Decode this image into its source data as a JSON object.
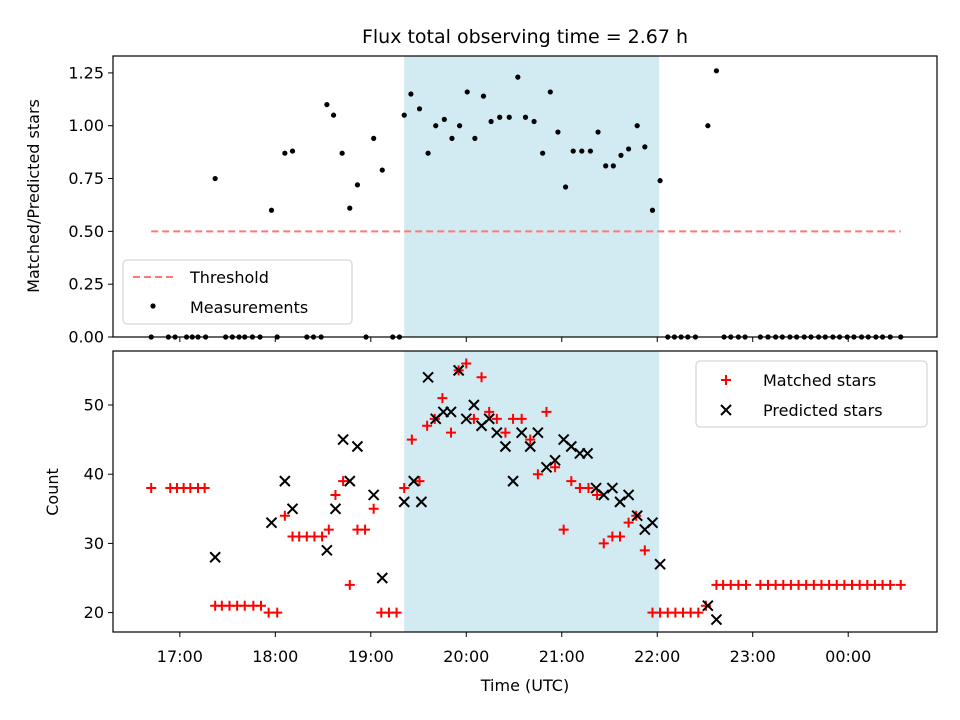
{
  "chart_data": {
    "type": "scatter",
    "title": "Flux total observing time = 2.67 h",
    "xlabel": "Time (UTC)",
    "x_ticks": [
      "17:00",
      "18:00",
      "19:00",
      "20:00",
      "21:00",
      "22:00",
      "23:00",
      "00:00"
    ],
    "shaded_window": {
      "start": 19.35,
      "end": 22.02,
      "color": "#add8e6"
    },
    "panels": [
      {
        "name": "ratio",
        "ylabel": "Matched/Predicted stars",
        "ylim": [
          0,
          1.33
        ],
        "y_ticks": [
          "0.00",
          "0.25",
          "0.50",
          "0.75",
          "1.00",
          "1.25"
        ],
        "legend_position": "lower-left",
        "threshold": {
          "name": "Threshold",
          "value": 0.5,
          "x_range": [
            16.7,
            24.55
          ],
          "color": "#ff7777"
        },
        "series": [
          {
            "name": "Measurements",
            "color": "#000000",
            "points": [
              [
                16.7,
                0
              ],
              [
                16.88,
                0
              ],
              [
                16.95,
                0
              ],
              [
                17.07,
                0
              ],
              [
                17.13,
                0
              ],
              [
                17.19,
                0
              ],
              [
                17.27,
                0
              ],
              [
                17.37,
                0.75
              ],
              [
                17.48,
                0
              ],
              [
                17.55,
                0
              ],
              [
                17.62,
                0
              ],
              [
                17.68,
                0
              ],
              [
                17.76,
                0
              ],
              [
                17.84,
                0
              ],
              [
                17.96,
                0.6
              ],
              [
                18.02,
                0
              ],
              [
                18.1,
                0.87
              ],
              [
                18.18,
                0.88
              ],
              [
                18.33,
                0
              ],
              [
                18.4,
                0
              ],
              [
                18.48,
                0
              ],
              [
                18.54,
                1.1
              ],
              [
                18.61,
                1.05
              ],
              [
                18.7,
                0.87
              ],
              [
                18.78,
                0.61
              ],
              [
                18.86,
                0.72
              ],
              [
                18.95,
                0
              ],
              [
                19.03,
                0.94
              ],
              [
                19.12,
                0.79
              ],
              [
                19.23,
                0
              ],
              [
                19.3,
                0
              ],
              [
                19.35,
                1.05
              ],
              [
                19.42,
                1.15
              ],
              [
                19.51,
                1.08
              ],
              [
                19.6,
                0.87
              ],
              [
                19.68,
                1
              ],
              [
                19.77,
                1.03
              ],
              [
                19.85,
                0.94
              ],
              [
                19.93,
                1
              ],
              [
                20.01,
                1.16
              ],
              [
                20.09,
                0.94
              ],
              [
                20.18,
                1.14
              ],
              [
                20.26,
                1.02
              ],
              [
                20.35,
                1.04
              ],
              [
                20.45,
                1.04
              ],
              [
                20.54,
                1.23
              ],
              [
                20.62,
                1.04
              ],
              [
                20.71,
                1.02
              ],
              [
                20.8,
                0.87
              ],
              [
                20.88,
                1.16
              ],
              [
                20.96,
                0.97
              ],
              [
                21.04,
                0.71
              ],
              [
                21.12,
                0.88
              ],
              [
                21.21,
                0.88
              ],
              [
                21.3,
                0.88
              ],
              [
                21.38,
                0.97
              ],
              [
                21.46,
                0.81
              ],
              [
                21.54,
                0.81
              ],
              [
                21.62,
                0.86
              ],
              [
                21.7,
                0.89
              ],
              [
                21.79,
                1
              ],
              [
                21.87,
                0.9
              ],
              [
                21.95,
                0.6
              ],
              [
                22.03,
                0.74
              ],
              [
                22.11,
                0
              ],
              [
                22.18,
                0
              ],
              [
                22.25,
                0
              ],
              [
                22.32,
                0
              ],
              [
                22.4,
                0
              ],
              [
                22.53,
                1
              ],
              [
                22.62,
                1.26
              ],
              [
                22.7,
                0
              ],
              [
                22.77,
                0
              ],
              [
                22.85,
                0
              ],
              [
                22.92,
                0
              ],
              [
                23.08,
                0
              ],
              [
                23.16,
                0
              ],
              [
                23.24,
                0
              ],
              [
                23.31,
                0
              ],
              [
                23.39,
                0
              ],
              [
                23.46,
                0
              ],
              [
                23.54,
                0
              ],
              [
                23.61,
                0
              ],
              [
                23.69,
                0
              ],
              [
                23.76,
                0
              ],
              [
                23.84,
                0
              ],
              [
                23.91,
                0
              ],
              [
                23.99,
                0
              ],
              [
                24.06,
                0
              ],
              [
                24.14,
                0
              ],
              [
                24.21,
                0
              ],
              [
                24.29,
                0
              ],
              [
                24.36,
                0
              ],
              [
                24.44,
                0
              ],
              [
                24.55,
                0
              ]
            ]
          }
        ]
      },
      {
        "name": "counts",
        "ylabel": "Count",
        "ylim": [
          17.2,
          57.8
        ],
        "y_ticks": [
          "20",
          "30",
          "40",
          "50"
        ],
        "legend_position": "upper-right",
        "series": [
          {
            "name": "Matched stars",
            "color": "#ff0000",
            "marker": "plus",
            "points": [
              [
                16.7,
                38
              ],
              [
                16.9,
                38
              ],
              [
                16.97,
                38
              ],
              [
                17.04,
                38
              ],
              [
                17.11,
                38
              ],
              [
                17.19,
                38
              ],
              [
                17.26,
                38
              ],
              [
                17.37,
                21
              ],
              [
                17.44,
                21
              ],
              [
                17.52,
                21
              ],
              [
                17.6,
                21
              ],
              [
                17.68,
                21
              ],
              [
                17.77,
                21
              ],
              [
                17.85,
                21
              ],
              [
                17.93,
                20
              ],
              [
                18.02,
                20
              ],
              [
                18.1,
                34
              ],
              [
                18.18,
                31
              ],
              [
                18.25,
                31
              ],
              [
                18.33,
                31
              ],
              [
                18.41,
                31
              ],
              [
                18.49,
                31
              ],
              [
                18.56,
                32
              ],
              [
                18.63,
                37
              ],
              [
                18.71,
                39
              ],
              [
                18.78,
                24
              ],
              [
                18.86,
                32
              ],
              [
                18.94,
                32
              ],
              [
                19.03,
                35
              ],
              [
                19.11,
                20
              ],
              [
                19.19,
                20
              ],
              [
                19.27,
                20
              ],
              [
                19.35,
                38
              ],
              [
                19.43,
                45
              ],
              [
                19.51,
                39
              ],
              [
                19.59,
                47
              ],
              [
                19.67,
                48
              ],
              [
                19.75,
                51
              ],
              [
                19.84,
                46
              ],
              [
                19.92,
                55
              ],
              [
                20.0,
                56
              ],
              [
                20.08,
                48
              ],
              [
                20.16,
                54
              ],
              [
                20.24,
                49
              ],
              [
                20.32,
                48
              ],
              [
                20.41,
                46
              ],
              [
                20.49,
                48
              ],
              [
                20.58,
                48
              ],
              [
                20.67,
                45
              ],
              [
                20.75,
                40
              ],
              [
                20.84,
                49
              ],
              [
                20.93,
                41
              ],
              [
                21.02,
                32
              ],
              [
                21.1,
                39
              ],
              [
                21.19,
                38
              ],
              [
                21.28,
                38
              ],
              [
                21.37,
                37
              ],
              [
                21.44,
                30
              ],
              [
                21.53,
                31
              ],
              [
                21.61,
                31
              ],
              [
                21.7,
                33
              ],
              [
                21.78,
                34
              ],
              [
                21.87,
                29
              ],
              [
                21.95,
                20
              ],
              [
                22.03,
                20
              ],
              [
                22.11,
                20
              ],
              [
                22.19,
                20
              ],
              [
                22.27,
                20
              ],
              [
                22.35,
                20
              ],
              [
                22.43,
                20
              ],
              [
                22.51,
                21
              ],
              [
                22.62,
                24
              ],
              [
                22.69,
                24
              ],
              [
                22.77,
                24
              ],
              [
                22.85,
                24
              ],
              [
                22.93,
                24
              ],
              [
                23.08,
                24
              ],
              [
                23.16,
                24
              ],
              [
                23.24,
                24
              ],
              [
                23.32,
                24
              ],
              [
                23.4,
                24
              ],
              [
                23.48,
                24
              ],
              [
                23.56,
                24
              ],
              [
                23.64,
                24
              ],
              [
                23.72,
                24
              ],
              [
                23.8,
                24
              ],
              [
                23.88,
                24
              ],
              [
                23.96,
                24
              ],
              [
                24.04,
                24
              ],
              [
                24.12,
                24
              ],
              [
                24.2,
                24
              ],
              [
                24.28,
                24
              ],
              [
                24.36,
                24
              ],
              [
                24.44,
                24
              ],
              [
                24.55,
                24
              ]
            ]
          },
          {
            "name": "Predicted stars",
            "color": "#000000",
            "marker": "x",
            "points": [
              [
                17.37,
                28
              ],
              [
                17.96,
                33
              ],
              [
                18.1,
                39
              ],
              [
                18.18,
                35
              ],
              [
                18.54,
                29
              ],
              [
                18.63,
                35
              ],
              [
                18.71,
                45
              ],
              [
                18.78,
                39
              ],
              [
                18.86,
                44
              ],
              [
                19.03,
                37
              ],
              [
                19.12,
                25
              ],
              [
                19.35,
                36
              ],
              [
                19.45,
                39
              ],
              [
                19.53,
                36
              ],
              [
                19.6,
                54
              ],
              [
                19.68,
                48
              ],
              [
                19.76,
                49
              ],
              [
                19.84,
                49
              ],
              [
                19.92,
                55
              ],
              [
                20.0,
                48
              ],
              [
                20.08,
                50
              ],
              [
                20.16,
                47
              ],
              [
                20.24,
                48
              ],
              [
                20.32,
                46
              ],
              [
                20.41,
                44
              ],
              [
                20.49,
                39
              ],
              [
                20.58,
                46
              ],
              [
                20.67,
                44
              ],
              [
                20.75,
                46
              ],
              [
                20.84,
                41
              ],
              [
                20.93,
                42
              ],
              [
                21.02,
                45
              ],
              [
                21.1,
                44
              ],
              [
                21.19,
                43
              ],
              [
                21.27,
                43
              ],
              [
                21.36,
                38
              ],
              [
                21.44,
                37
              ],
              [
                21.53,
                38
              ],
              [
                21.61,
                36
              ],
              [
                21.7,
                37
              ],
              [
                21.79,
                34
              ],
              [
                21.87,
                32
              ],
              [
                21.95,
                33
              ],
              [
                22.03,
                27
              ],
              [
                22.53,
                21
              ],
              [
                22.62,
                19
              ]
            ]
          }
        ]
      }
    ]
  }
}
